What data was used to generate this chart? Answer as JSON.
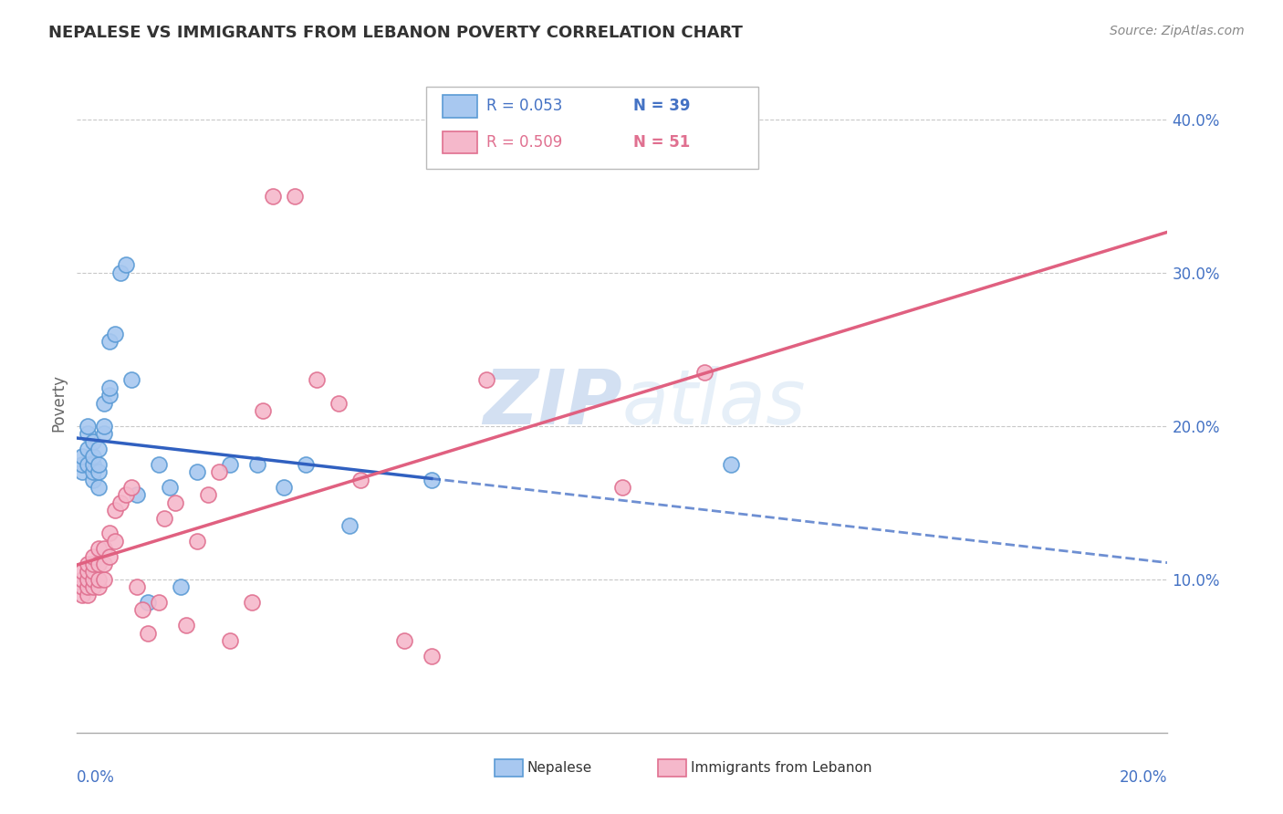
{
  "title": "NEPALESE VS IMMIGRANTS FROM LEBANON POVERTY CORRELATION CHART",
  "source": "Source: ZipAtlas.com",
  "ylabel": "Poverty",
  "watermark": "ZIPAtlas",
  "legend_r1": "R = 0.053",
  "legend_n1": "N = 39",
  "legend_r2": "R = 0.509",
  "legend_n2": "N = 51",
  "nepalese_color": "#A8C8F0",
  "lebanon_color": "#F5B8CB",
  "nepalese_edge": "#5B9BD5",
  "lebanon_edge": "#E07090",
  "trend_blue_color": "#3060C0",
  "trend_pink_color": "#E06080",
  "background": "#FFFFFF",
  "grid_color": "#C8C8C8",
  "nep_x": [
    0.001,
    0.001,
    0.001,
    0.002,
    0.002,
    0.002,
    0.002,
    0.003,
    0.003,
    0.003,
    0.003,
    0.003,
    0.004,
    0.004,
    0.004,
    0.004,
    0.005,
    0.005,
    0.005,
    0.006,
    0.006,
    0.006,
    0.007,
    0.008,
    0.009,
    0.01,
    0.011,
    0.013,
    0.015,
    0.017,
    0.019,
    0.022,
    0.028,
    0.033,
    0.038,
    0.042,
    0.05,
    0.065,
    0.12
  ],
  "nep_y": [
    0.17,
    0.175,
    0.18,
    0.175,
    0.185,
    0.195,
    0.2,
    0.165,
    0.17,
    0.175,
    0.18,
    0.19,
    0.16,
    0.17,
    0.175,
    0.185,
    0.195,
    0.2,
    0.215,
    0.22,
    0.225,
    0.255,
    0.26,
    0.3,
    0.305,
    0.23,
    0.155,
    0.085,
    0.175,
    0.16,
    0.095,
    0.17,
    0.175,
    0.175,
    0.16,
    0.175,
    0.135,
    0.165,
    0.175
  ],
  "leb_x": [
    0.001,
    0.001,
    0.001,
    0.001,
    0.002,
    0.002,
    0.002,
    0.002,
    0.002,
    0.003,
    0.003,
    0.003,
    0.003,
    0.003,
    0.004,
    0.004,
    0.004,
    0.004,
    0.005,
    0.005,
    0.005,
    0.006,
    0.006,
    0.007,
    0.007,
    0.008,
    0.009,
    0.01,
    0.011,
    0.012,
    0.013,
    0.015,
    0.016,
    0.018,
    0.02,
    0.022,
    0.024,
    0.026,
    0.028,
    0.032,
    0.034,
    0.036,
    0.04,
    0.044,
    0.048,
    0.052,
    0.06,
    0.065,
    0.075,
    0.1,
    0.115
  ],
  "leb_y": [
    0.09,
    0.095,
    0.1,
    0.105,
    0.09,
    0.095,
    0.1,
    0.105,
    0.11,
    0.095,
    0.1,
    0.105,
    0.11,
    0.115,
    0.095,
    0.1,
    0.11,
    0.12,
    0.1,
    0.11,
    0.12,
    0.115,
    0.13,
    0.125,
    0.145,
    0.15,
    0.155,
    0.16,
    0.095,
    0.08,
    0.065,
    0.085,
    0.14,
    0.15,
    0.07,
    0.125,
    0.155,
    0.17,
    0.06,
    0.085,
    0.21,
    0.35,
    0.35,
    0.23,
    0.215,
    0.165,
    0.06,
    0.05,
    0.23,
    0.16,
    0.235
  ],
  "xlim": [
    0.0,
    0.2
  ],
  "ylim": [
    0.0,
    0.43
  ],
  "yticks": [
    0.1,
    0.2,
    0.3,
    0.4
  ],
  "ytick_labels": [
    "10.0%",
    "20.0%",
    "30.0%",
    "40.0%"
  ],
  "nep_trend_x_end": 0.065,
  "leb_trend_x_end": 0.2
}
